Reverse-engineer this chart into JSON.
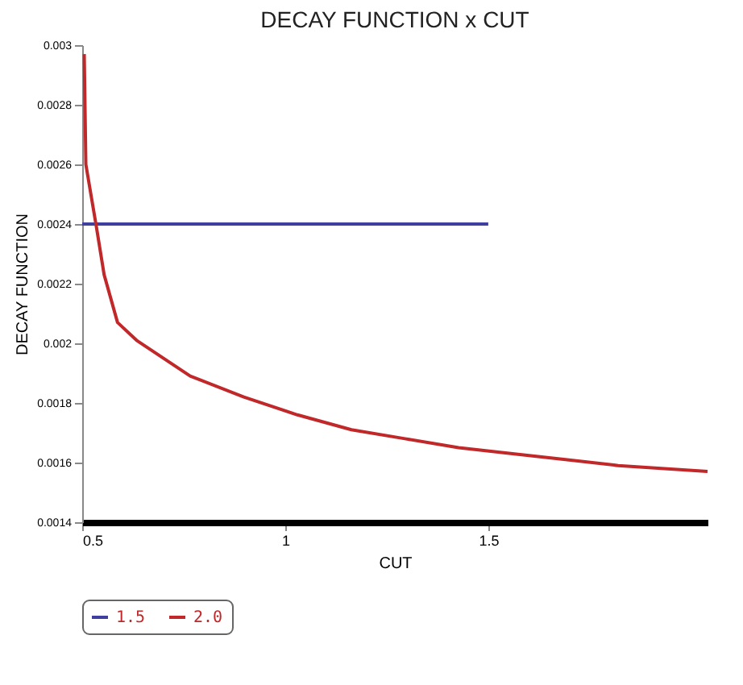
{
  "chart_data": {
    "type": "line",
    "title": "DECAY FUNCTION  x CUT",
    "xlabel": "CUT",
    "ylabel": "DECAY  FUNCTION",
    "xlim": [
      0.5,
      2.04
    ],
    "xticks": [
      0.5,
      1,
      1.5
    ],
    "ylim": [
      0.0014,
      0.003
    ],
    "yticks": [
      0.0014,
      0.0016,
      0.0018,
      0.002,
      0.0022,
      0.0024,
      0.0026,
      0.0028,
      0.003
    ],
    "grid": false,
    "legend": "bottom",
    "marker": "none",
    "line_style": "solid",
    "series": [
      {
        "name": "1.5",
        "color": "#3f3fa0",
        "x": [
          0.5,
          1.5
        ],
        "values": [
          0.0024,
          0.0024
        ]
      },
      {
        "name": "2.0",
        "color": "#c0282a",
        "x": [
          0.505,
          0.509,
          0.535,
          0.554,
          0.587,
          0.634,
          0.766,
          0.898,
          1.03,
          1.163,
          1.295,
          1.427,
          1.56,
          1.69,
          1.82,
          2.04
        ],
        "values": [
          0.00297,
          0.0026,
          0.00239,
          0.00223,
          0.00207,
          0.00201,
          0.00189,
          0.00182,
          0.00176,
          0.00171,
          0.00168,
          0.00165,
          0.00163,
          0.00161,
          0.00159,
          0.00157
        ]
      }
    ]
  }
}
